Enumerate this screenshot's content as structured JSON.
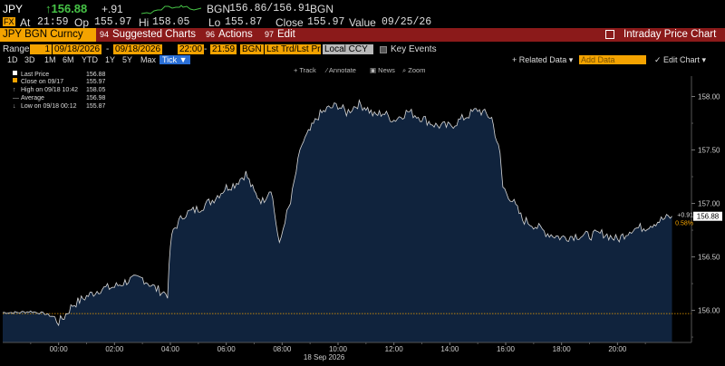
{
  "header": {
    "ticker": "JPY",
    "last_price": "↑156.88",
    "change": "+.91",
    "bid_ask_label": "BGN",
    "bid_ask": "156.86/156.91",
    "source": "BGN",
    "at_label": "At",
    "at_time": "21:59",
    "open_label": "Op",
    "open": "155.97",
    "high_label": "Hi",
    "high": "158.05",
    "low_label": "Lo",
    "low": "155.87",
    "close_label": "Close",
    "close": "155.97",
    "value_label": "Value",
    "value_date": "09/25/26",
    "fx_badge": "FX"
  },
  "toolbar": {
    "security": "JPY BGN Curncy",
    "suggested_num": "94",
    "suggested_label": "Suggested Charts",
    "actions_num": "96",
    "actions_label": "Actions",
    "edit_num": "97",
    "edit_label": "Edit",
    "chart_title": "Intraday Price Chart"
  },
  "range_bar": {
    "range_label": "Range",
    "range_num": "1",
    "start_date": "09/18/2026",
    "end_date": "09/18/2026",
    "start_time": "22:00",
    "end_time": "21:59",
    "source": "BGN",
    "market": "Lst Trd/Lst Pr",
    "currency": "Local CCY",
    "key_events": "Key Events"
  },
  "periods": [
    "1D",
    "3D",
    "1M",
    "6M",
    "YTD",
    "1Y",
    "5Y",
    "Max",
    "Tick ▼"
  ],
  "right_tools": {
    "related": "+ Related Data ▾",
    "add_data_placeholder": "Add Data",
    "edit_chart": "✓ Edit Chart ▾"
  },
  "chart_tools": [
    "+ Track",
    "⁄ Annotate",
    "▣ News",
    "⌕ Zoom"
  ],
  "legend": [
    {
      "label": "Last Price",
      "value": "156.88"
    },
    {
      "label": "Close on 09/17",
      "value": "155.97"
    },
    {
      "label": "High on 09/18 10:42",
      "value": "158.05"
    },
    {
      "label": "Average",
      "value": "156.98"
    },
    {
      "label": "Low on 09/18 00:12",
      "value": "155.87"
    }
  ],
  "colors": {
    "area_fill": "#10233d",
    "line": "#d8d8d8",
    "close_line": "#f4a300",
    "toolbar_red": "#8b1a1a",
    "orange": "#f4a300",
    "up_green": "#46c346"
  },
  "chart_data": {
    "type": "area",
    "x_date_label": "18 Sep 2026",
    "x_ticks": [
      "00:00",
      "02:00",
      "04:00",
      "06:00",
      "08:00",
      "10:00",
      "12:00",
      "14:00",
      "16:00",
      "18:00",
      "20:00"
    ],
    "y_ticks": [
      156.0,
      156.5,
      157.0,
      157.5,
      158.0
    ],
    "ylim": [
      155.7,
      158.14
    ],
    "xlim_hours": [
      -2,
      22
    ],
    "close_reference": 155.97,
    "last_label": "156.88",
    "change_label": "+0.91",
    "change_pct_label": "0.58%",
    "series": [
      {
        "x": [
          -2,
          -1.5,
          -1,
          -0.5,
          -0.2,
          0,
          0.2,
          0.5,
          1,
          1.5,
          2,
          2.5,
          3,
          3.5,
          3.9,
          4.0,
          4.1,
          4.5,
          5,
          5.5,
          6,
          6.3,
          6.7,
          7,
          7.3,
          7.6,
          7.9,
          8.1,
          8.3,
          8.5,
          8.7,
          9,
          9.3,
          9.6,
          10,
          10.3,
          10.7,
          11,
          11.3,
          11.6,
          12,
          12.5,
          13,
          13.5,
          14,
          14.5,
          15,
          15.5,
          15.8,
          15.9,
          16.1,
          16.3,
          16.6,
          17,
          17.5,
          18,
          18.5,
          19,
          19.5,
          20,
          20.5,
          21,
          21.5,
          21.95
        ],
        "y": [
          155.98,
          155.98,
          155.99,
          155.97,
          155.94,
          155.89,
          155.94,
          156.05,
          156.13,
          156.2,
          156.22,
          156.28,
          156.3,
          156.2,
          156.15,
          156.6,
          156.75,
          156.9,
          156.95,
          157.03,
          157.15,
          157.18,
          157.28,
          157.1,
          157.02,
          157.15,
          156.6,
          156.85,
          157.0,
          157.3,
          157.55,
          157.68,
          157.82,
          157.88,
          157.92,
          157.85,
          157.93,
          157.9,
          157.82,
          157.85,
          157.78,
          157.86,
          157.8,
          157.73,
          157.72,
          157.8,
          157.88,
          157.8,
          157.45,
          157.15,
          157.08,
          157.0,
          156.85,
          156.8,
          156.72,
          156.68,
          156.7,
          156.7,
          156.72,
          156.66,
          156.76,
          156.78,
          156.84,
          156.88
        ]
      }
    ]
  }
}
